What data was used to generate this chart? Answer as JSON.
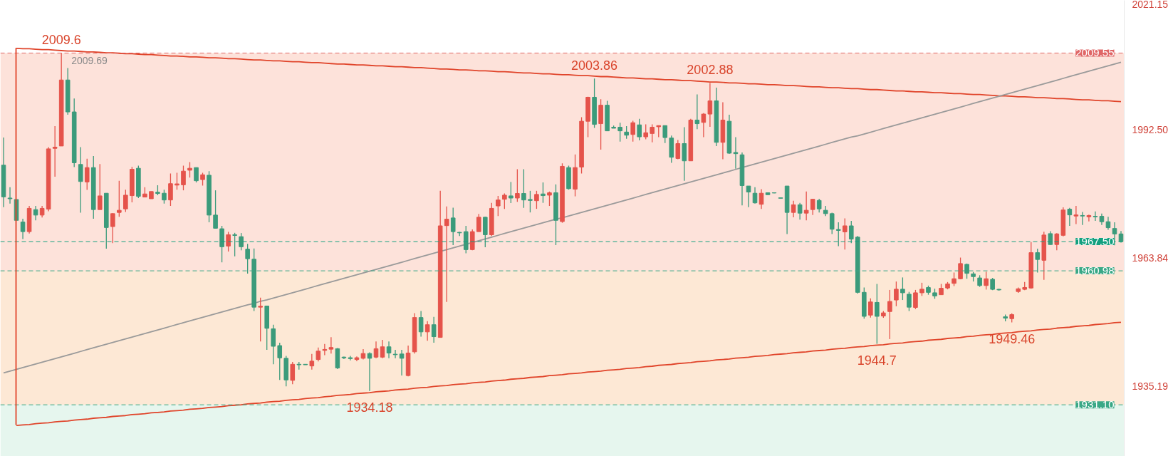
{
  "chart_data": {
    "type": "candlestick",
    "categories": [
      null,
      null,
      null,
      null,
      null,
      null,
      null,
      null,
      null,
      null,
      null,
      null,
      null,
      null,
      null,
      null,
      null,
      null,
      null,
      null,
      null,
      null,
      null,
      null,
      null,
      null,
      null,
      null,
      null,
      null,
      null,
      null,
      null,
      null,
      null,
      null,
      null,
      null,
      null,
      null,
      null,
      null,
      null,
      null,
      null,
      null,
      null,
      null,
      null,
      null,
      null,
      null,
      null,
      null,
      null,
      null,
      null,
      null,
      null,
      null,
      null,
      null,
      null,
      null,
      null,
      null,
      null,
      null,
      null,
      null,
      null,
      null,
      null,
      null,
      null,
      null,
      null,
      null,
      null,
      null,
      null,
      null,
      null,
      null,
      null,
      null,
      null,
      null,
      null,
      null,
      null,
      null,
      null,
      null,
      null,
      null,
      null,
      null,
      null,
      null,
      null,
      null,
      null,
      null,
      null,
      null,
      null,
      null,
      null,
      null,
      null,
      null,
      null,
      null,
      null,
      null,
      null,
      null,
      null,
      null,
      null,
      null,
      null,
      null,
      null,
      null,
      null,
      null,
      null,
      null,
      null,
      null,
      null,
      null,
      null,
      null,
      null,
      null,
      null,
      null,
      null,
      null,
      null,
      null,
      null,
      null,
      null,
      null,
      null,
      null,
      null,
      null,
      null,
      null,
      null,
      null,
      null,
      null,
      null,
      null,
      null,
      null,
      null,
      null,
      null,
      null,
      null,
      null,
      null,
      null,
      null,
      null,
      null,
      null,
      null
    ],
    "ohlc": [
      [
        1984.54,
        1990.7,
        1975.18,
        1977.48
      ],
      [
        1977.21,
        1979.62,
        1975.98,
        1977.05
      ],
      [
        1976.89,
        1976.89,
        1972.24,
        1972.24
      ],
      [
        1971.86,
        1972.61,
        1968.06,
        1969.72
      ],
      [
        1969.72,
        1975.45,
        1969.29,
        1974.91
      ],
      [
        1974.64,
        1975.45,
        1972.24,
        1973.41
      ],
      [
        1973.41,
        1975.45,
        1972.88,
        1974.91
      ],
      [
        1974.75,
        1988.56,
        1974.27,
        1988.18
      ],
      [
        1988.29,
        1993.27,
        1981.97,
        1988.56
      ],
      [
        1988.82,
        2009.6,
        1988.82,
        2003.54
      ],
      [
        2003.54,
        2006.22,
        1995.78,
        1996.42
      ],
      [
        1996.42,
        1999.42,
        1984.12,
        1985.08
      ],
      [
        1984.7,
        1988.56,
        1973.95,
        1980.9
      ],
      [
        1980.8,
        1985.99,
        1979.03,
        1984.01
      ],
      [
        1984.01,
        1986.58,
        1972.61,
        1974.64
      ],
      [
        1974.64,
        1984.81,
        1974.64,
        1977.69
      ],
      [
        1978.28,
        1978.28,
        1965.92,
        1970.63
      ],
      [
        1970.85,
        1973.84,
        1967.15,
        1973.73
      ],
      [
        1974.0,
        1981.07,
        1973.04,
        1974.48
      ],
      [
        1974.8,
        1979.09,
        1974.11,
        1977.85
      ],
      [
        1977.75,
        1984.17,
        1976.25,
        1983.63
      ],
      [
        1983.85,
        1984.44,
        1977.21,
        1977.59
      ],
      [
        1977.43,
        1979.62,
        1977.43,
        1978.12
      ],
      [
        1977.05,
        1978.66,
        1977.05,
        1978.66
      ],
      [
        1978.5,
        1980.05,
        1977.85,
        1978.23
      ],
      [
        1978.28,
        1979.09,
        1975.98,
        1976.78
      ],
      [
        1976.78,
        1982.67,
        1975.45,
        1980.42
      ],
      [
        1980.1,
        1982.83,
        1979.09,
        1980.37
      ],
      [
        1980.16,
        1984.44,
        1978.93,
        1983.21
      ],
      [
        1983.42,
        1985.24,
        1981.76,
        1983.85
      ],
      [
        1984.01,
        1984.01,
        1980.69,
        1981.07
      ],
      [
        1981.33,
        1982.83,
        1979.99,
        1982.4
      ],
      [
        1982.3,
        1983.21,
        1971.81,
        1973.41
      ],
      [
        1973.41,
        1978.93,
        1970.47,
        1970.47
      ],
      [
        1970.36,
        1971.01,
        1962.87,
        1966.35
      ],
      [
        1966.51,
        1969.67,
        1965.28,
        1969.03
      ],
      [
        1969.03,
        1969.45,
        1964.21,
        1968.87
      ],
      [
        1968.6,
        1969.4,
        1965.55,
        1966.35
      ],
      [
        1965.81,
        1966.99,
        1960.36,
        1963.67
      ],
      [
        1963.57,
        1965.97,
        1952.01,
        1952.87
      ],
      [
        1952.87,
        1955.01,
        1945.21,
        1953.08
      ],
      [
        1953.13,
        1953.13,
        1943.34,
        1948.16
      ],
      [
        1948.05,
        1948.96,
        1940.13,
        1944.15
      ],
      [
        1944.3,
        1944.95,
        1936.65,
        1941.57
      ],
      [
        1941.47,
        1942.0,
        1935.21,
        1936.65
      ],
      [
        1936.55,
        1940.67,
        1935.69,
        1940.13
      ],
      [
        1940.13,
        1940.67,
        1938.95,
        1940.02
      ],
      [
        1940.13,
        1940.13,
        1940.02,
        1940.02
      ],
      [
        1939.76,
        1942.43,
        1938.95,
        1940.83
      ],
      [
        1941.2,
        1943.88,
        1940.77,
        1943.07
      ],
      [
        1943.23,
        1944.68,
        1942.17,
        1943.45
      ],
      [
        1943.5,
        1946.18,
        1942.54,
        1943.88
      ],
      [
        1943.61,
        1943.77,
        1939.06,
        1939.33
      ],
      [
        1941.73,
        1941.84,
        1941.31,
        1941.57
      ],
      [
        1941.6,
        1942.0,
        1941.0,
        1941.4
      ],
      [
        1941.2,
        1941.9,
        1940.8,
        1941.6
      ],
      [
        1941.47,
        1943.5,
        1941.2,
        1942.54
      ],
      [
        1942.54,
        1942.81,
        1934.18,
        1941.47
      ],
      [
        1941.73,
        1945.21,
        1941.47,
        1943.61
      ],
      [
        1941.73,
        1945.59,
        1941.47,
        1944.03
      ],
      [
        1944.03,
        1945.21,
        1941.47,
        1942.65
      ],
      [
        1942.38,
        1943.34,
        1941.47,
        1942.27
      ],
      [
        1942.43,
        1943.34,
        1937.62,
        1941.47
      ],
      [
        1937.62,
        1944.3,
        1937.45,
        1942.65
      ],
      [
        1942.91,
        1951.53,
        1942.54,
        1950.56
      ],
      [
        1950.56,
        1952.01,
        1946.29,
        1947.36
      ],
      [
        1947.36,
        1949.76,
        1945.37,
        1948.96
      ],
      [
        1948.96,
        1950.72,
        1944.95,
        1946.29
      ],
      [
        1946.12,
        1978.82,
        1946.12,
        1971.01
      ],
      [
        1971.06,
        1975.34,
        1954.04,
        1972.5
      ],
      [
        1972.77,
        1975.07,
        1966.72,
        1969.72
      ],
      [
        1969.56,
        1969.67,
        1968.76,
        1969.45
      ],
      [
        1969.72,
        1971.01,
        1964.9,
        1965.71
      ],
      [
        1965.71,
        1970.2,
        1965.55,
        1969.72
      ],
      [
        1969.72,
        1973.68,
        1969.72,
        1972.93
      ],
      [
        1972.93,
        1973.04,
        1966.24,
        1969.03
      ],
      [
        1969.03,
        1976.14,
        1968.76,
        1974.91
      ],
      [
        1975.45,
        1977.69,
        1973.2,
        1976.78
      ],
      [
        1976.94,
        1978.23,
        1974.8,
        1977.85
      ],
      [
        1977.69,
        1980.8,
        1976.09,
        1977.21
      ],
      [
        1977.21,
        1983.63,
        1976.36,
        1978.23
      ],
      [
        1978.23,
        1983.63,
        1975.02,
        1976.78
      ],
      [
        1976.89,
        1978.82,
        1974.0,
        1976.68
      ],
      [
        1976.62,
        1978.82,
        1974.8,
        1978.02
      ],
      [
        1978.12,
        1980.69,
        1976.14,
        1977.75
      ],
      [
        1977.85,
        1978.66,
        1975.45,
        1978.39
      ],
      [
        1978.39,
        1980.26,
        1966.72,
        1972.24
      ],
      [
        1971.97,
        1984.97,
        1971.7,
        1984.28
      ],
      [
        1984.01,
        1984.44,
        1979.09,
        1979.3
      ],
      [
        1979.19,
        1986.95,
        1977.59,
        1984.01
      ],
      [
        1984.12,
        1995.25,
        1982.67,
        1994.34
      ],
      [
        1994.34,
        1999.79,
        1990.8,
        1999.69
      ],
      [
        1999.69,
        2003.86,
        1992.84,
        1993.64
      ],
      [
        1993.8,
        1999.26,
        1988.02,
        1997.92
      ],
      [
        1997.92,
        1998.88,
        1992.2,
        1992.2
      ],
      [
        1993.0,
        1993.37,
        1992.78,
        1992.78
      ],
      [
        1993.0,
        1994.01,
        1989.79,
        1992.2
      ],
      [
        1991.93,
        1993.27,
        1990.43,
        1991.23
      ],
      [
        1991.39,
        1994.44,
        1989.79,
        1994.01
      ],
      [
        1993.53,
        1994.87,
        1990.06,
        1990.86
      ],
      [
        1990.86,
        1993.64,
        1990.32,
        1991.77
      ],
      [
        1991.61,
        1993.64,
        1989.63,
        1993.0
      ],
      [
        1993.11,
        1993.37,
        1990.8,
        1993.37
      ],
      [
        1993.37,
        1993.37,
        1989.47,
        1990.7
      ],
      [
        1990.59,
        1991.13,
        1985.08,
        1986.31
      ],
      [
        1986.04,
        1990.16,
        1985.88,
        1989.36
      ],
      [
        1989.36,
        1993.0,
        1981.07,
        1985.51
      ],
      [
        1985.51,
        1994.87,
        1985.51,
        1994.6
      ],
      [
        1994.6,
        2000.33,
        1992.57,
        1993.8
      ],
      [
        1994.07,
        1996.16,
        1990.8,
        1995.94
      ],
      [
        1995.94,
        2002.88,
        1993.11,
        1998.88
      ],
      [
        1998.88,
        2001.83,
        1988.82,
        1989.63
      ],
      [
        1989.63,
        1998.56,
        1985.88,
        1994.6
      ],
      [
        1994.34,
        1995.78,
        1987.06,
        1987.22
      ],
      [
        1987.38,
        1990.8,
        1983.74,
        1987.11
      ],
      [
        1986.85,
        1987.38,
        1975.56,
        1979.99
      ],
      [
        1979.89,
        1979.89,
        1975.18,
        1978.55
      ],
      [
        1978.28,
        1979.62,
        1975.98,
        1976.14
      ],
      [
        1975.82,
        1979.19,
        1974.8,
        1978.28
      ],
      [
        1978.39,
        1978.39,
        1977.96,
        1977.96
      ],
      [
        1978.39,
        1978.39,
        1978.28,
        1978.34
      ],
      [
        1977.26,
        1977.26,
        1977.16,
        1977.16
      ],
      [
        1979.89,
        1979.89,
        1969.19,
        1974.0
      ],
      [
        1974.0,
        1976.62,
        1972.93,
        1975.71
      ],
      [
        1975.71,
        1976.14,
        1972.4,
        1973.84
      ],
      [
        1973.84,
        1978.66,
        1972.24,
        1974.48
      ],
      [
        1974.64,
        1977.05,
        1973.41,
        1976.94
      ],
      [
        1976.68,
        1977.05,
        1974.0,
        1974.8
      ],
      [
        1974.48,
        1975.45,
        1973.2,
        1973.73
      ],
      [
        1973.73,
        1973.95,
        1969.19,
        1970.26
      ],
      [
        1970.2,
        1971.81,
        1966.46,
        1969.99
      ],
      [
        1969.67,
        1972.66,
        1965.71,
        1971.01
      ],
      [
        1971.01,
        1972.13,
        1967.15,
        1968.06
      ],
      [
        1968.49,
        1968.76,
        1955.92,
        1956.18
      ],
      [
        1956.18,
        1957.25,
        1950.29,
        1950.83
      ],
      [
        1951.1,
        1954.85,
        1950.56,
        1954.04
      ],
      [
        1953.93,
        1958.06,
        1944.7,
        1950.83
      ],
      [
        1950.9,
        1952.0,
        1950.5,
        1951.6
      ],
      [
        1951.9,
        1956.72,
        1945.75,
        1954.15
      ],
      [
        1954.47,
        1958.59,
        1953.08,
        1956.88
      ],
      [
        1956.88,
        1959.5,
        1954.47,
        1956.08
      ],
      [
        1955.76,
        1956.29,
        1952.01,
        1952.87
      ],
      [
        1952.81,
        1956.72,
        1952.44,
        1956.08
      ],
      [
        1956.08,
        1958.32,
        1955.38,
        1956.88
      ],
      [
        1957.25,
        1957.68,
        1955.65,
        1956.18
      ],
      [
        1956.08,
        1956.99,
        1954.74,
        1955.38
      ],
      [
        1955.65,
        1958.06,
        1955.65,
        1957.09
      ],
      [
        1957.15,
        1958.48,
        1956.85,
        1958.06
      ],
      [
        1958.18,
        1960.6,
        1957.57,
        1959.21
      ],
      [
        1959.21,
        1963.93,
        1959.09,
        1962.6
      ],
      [
        1962.42,
        1962.6,
        1959.21,
        1960.42
      ],
      [
        1960.3,
        1960.72,
        1958.6,
        1959.69
      ],
      [
        1959.39,
        1959.99,
        1957.4,
        1957.7
      ],
      [
        1957.7,
        1960.78,
        1956.79,
        1959.21
      ],
      [
        1959.09,
        1959.39,
        1956.67,
        1956.85
      ],
      [
        1956.85,
        1956.97,
        1956.55,
        1956.73
      ],
      [
        1950.73,
        1951.21,
        1949.7,
        1950.43
      ],
      [
        1950.31,
        1951.52,
        1949.46,
        1951.21
      ],
      [
        1956.36,
        1957.27,
        1956.06,
        1956.97
      ],
      [
        1956.85,
        1958.48,
        1956.67,
        1957.27
      ],
      [
        1957.15,
        1967.39,
        1956.97,
        1965.03
      ],
      [
        1965.03,
        1965.93,
        1960.6,
        1963.51
      ],
      [
        1963.33,
        1969.69,
        1958.97,
        1968.96
      ],
      [
        1969.27,
        1969.81,
        1966.78,
        1966.84
      ],
      [
        1966.84,
        1969.39,
        1965.57,
        1969.21
      ],
      [
        1968.9,
        1975.14,
        1968.66,
        1974.54
      ],
      [
        1974.72,
        1975.02,
        1971.02,
        1973.45
      ],
      [
        1973.2,
        1975.45,
        1971.39,
        1973.45
      ],
      [
        1973.32,
        1974.11,
        1971.2,
        1973.2
      ],
      [
        1973.02,
        1973.51,
        1971.99,
        1973.32
      ],
      [
        1973.14,
        1974.23,
        1972.11,
        1973.02
      ],
      [
        1973.14,
        1973.75,
        1971.2,
        1971.93
      ],
      [
        1971.93,
        1973.02,
        1970.12,
        1970.6
      ],
      [
        1970.42,
        1971.81,
        1966.66,
        1969.21
      ],
      [
        1969.21,
        1969.87,
        1967.27,
        1967.5
      ]
    ],
    "colors": [
      "#3b9b7b",
      "#3b9b7b",
      "#3b9b7b",
      "#3b9b7b",
      "#e5534b",
      "#3b9b7b",
      "#e5534b",
      "#e5534b",
      "#e5534b",
      "#e5534b",
      "#3b9b7b",
      "#3b9b7b",
      "#3b9b7b",
      "#e5534b",
      "#3b9b7b",
      "#e5534b",
      "#3b9b7b",
      "#e5534b",
      "#e5534b",
      "#e5534b",
      "#e5534b",
      "#3b9b7b",
      "#e5534b",
      "#e5534b",
      "#3b9b7b",
      "#3b9b7b",
      "#e5534b",
      "#e5534b",
      "#e5534b",
      "#e5534b",
      "#3b9b7b",
      "#e5534b",
      "#3b9b7b",
      "#3b9b7b",
      "#3b9b7b",
      "#e5534b",
      "#3b9b7b",
      "#3b9b7b",
      "#3b9b7b",
      "#3b9b7b",
      "#e5534b",
      "#3b9b7b",
      "#3b9b7b",
      "#3b9b7b",
      "#3b9b7b",
      "#e5534b",
      "#3b9b7b",
      "#3b9b7b",
      "#e5534b",
      "#e5534b",
      "#e5534b",
      "#e5534b",
      "#3b9b7b",
      "#3b9b7b",
      "#3b9b7b",
      "#e5534b",
      "#e5534b",
      "#3b9b7b",
      "#e5534b",
      "#e5534b",
      "#3b9b7b",
      "#3b9b7b",
      "#3b9b7b",
      "#e5534b",
      "#e5534b",
      "#3b9b7b",
      "#e5534b",
      "#3b9b7b",
      "#e5534b",
      "#e5534b",
      "#3b9b7b",
      "#3b9b7b",
      "#3b9b7b",
      "#e5534b",
      "#e5534b",
      "#3b9b7b",
      "#e5534b",
      "#e5534b",
      "#e5534b",
      "#3b9b7b",
      "#e5534b",
      "#3b9b7b",
      "#3b9b7b",
      "#e5534b",
      "#3b9b7b",
      "#e5534b",
      "#3b9b7b",
      "#e5534b",
      "#3b9b7b",
      "#e5534b",
      "#e5534b",
      "#e5534b",
      "#3b9b7b",
      "#e5534b",
      "#3b9b7b",
      "#3b9b7b",
      "#3b9b7b",
      "#3b9b7b",
      "#e5534b",
      "#3b9b7b",
      "#e5534b",
      "#e5534b",
      "#e5534b",
      "#3b9b7b",
      "#3b9b7b",
      "#e5534b",
      "#3b9b7b",
      "#e5534b",
      "#3b9b7b",
      "#e5534b",
      "#e5534b",
      "#3b9b7b",
      "#e5534b",
      "#3b9b7b",
      "#3b9b7b",
      "#3b9b7b",
      "#3b9b7b",
      "#3b9b7b",
      "#e5534b",
      "#3b9b7b",
      "#3b9b7b",
      "#3b9b7b",
      "#3b9b7b",
      "#e5534b",
      "#3b9b7b",
      "#e5534b",
      "#e5534b",
      "#3b9b7b",
      "#3b9b7b",
      "#3b9b7b",
      "#3b9b7b",
      "#e5534b",
      "#3b9b7b",
      "#3b9b7b",
      "#3b9b7b",
      "#e5534b",
      "#3b9b7b",
      "#e5534b",
      "#e5534b",
      "#e5534b",
      "#3b9b7b",
      "#3b9b7b",
      "#e5534b",
      "#e5534b",
      "#3b9b7b",
      "#3b9b7b",
      "#e5534b",
      "#e5534b",
      "#e5534b",
      "#e5534b",
      "#3b9b7b",
      "#3b9b7b",
      "#3b9b7b",
      "#e5534b",
      "#3b9b7b",
      "#3b9b7b",
      "#3b9b7b",
      "#e5534b",
      "#e5534b",
      "#e5534b",
      "#e5534b",
      "#3b9b7b",
      "#e5534b",
      "#3b9b7b",
      "#e5534b",
      "#e5534b",
      "#3b9b7b",
      "#e5534b",
      "#3b9b7b",
      "#e5534b",
      "#3b9b7b",
      "#3b9b7b",
      "#3b9b7b",
      "#3b9b7b",
      "#3b9b7b"
    ],
    "series": [
      {
        "type": "line",
        "color": "#e0442a",
        "values": [
          null,
          null,
          2010.6,
          2010.5,
          2010.5,
          2010.4,
          2010.3,
          2010.3,
          2010.2,
          2010.1,
          2010.0,
          2010.0,
          2009.9,
          2009.8,
          2009.8,
          2009.7,
          2009.6,
          2009.6,
          2009.5,
          2009.4,
          2009.4,
          2009.3,
          2009.2,
          2009.2,
          2009.1,
          2009.0,
          2008.9,
          2008.9,
          2008.8,
          2008.7,
          2008.7,
          2008.6,
          2008.5,
          2008.5,
          2008.4,
          2008.3,
          2008.3,
          2008.2,
          2008.1,
          2008.0,
          2008.0,
          2007.9,
          2007.8,
          2007.8,
          2007.7,
          2007.6,
          2007.6,
          2007.5,
          2007.4,
          2007.4,
          2007.3,
          2007.2,
          2007.1,
          2007.1,
          2007.0,
          2006.9,
          2006.9,
          2006.8,
          2006.7,
          2006.7,
          2006.6,
          2006.5,
          2006.5,
          2006.4,
          2006.3,
          2006.3,
          2006.2,
          2006.1,
          2006.0,
          2006.0,
          2005.9,
          2005.8,
          2005.8,
          2005.7,
          2005.6,
          2005.6,
          2005.5,
          2005.4,
          2005.4,
          2005.3,
          2005.2,
          2005.1,
          2005.1,
          2005.0,
          2004.9,
          2004.9,
          2004.8,
          2004.7,
          2004.7,
          2004.6,
          2004.5,
          2004.5,
          2004.4,
          2004.3,
          2004.3,
          2004.2,
          2004.1,
          2004.0,
          2004.0,
          2003.9,
          2003.8,
          2003.8,
          2003.7,
          2003.6,
          2003.6,
          2003.5,
          2003.4,
          2003.4,
          2003.3,
          2003.2,
          2003.1,
          2003.1,
          2003.0,
          2002.9,
          2002.9,
          2002.8,
          2002.7,
          2002.7,
          2002.6,
          2002.5,
          2002.5,
          2002.4,
          2002.3,
          2002.3,
          2002.2,
          2002.1,
          2002.0,
          2002.0,
          2001.9,
          2001.8,
          2001.8,
          2001.7,
          2001.6,
          2001.6,
          2001.5,
          2001.4,
          2001.4,
          2001.3,
          2001.2,
          2001.1,
          2001.1,
          2001.0,
          2000.9,
          2000.9,
          2000.8,
          2000.7,
          2000.7,
          2000.6,
          2000.5,
          2000.5,
          2000.4,
          2000.3,
          2000.3,
          2000.2,
          2000.1,
          2000.0,
          2000.0,
          1999.9,
          1999.8,
          1999.8,
          1999.7,
          1999.6,
          1999.6,
          1999.5,
          1999.4,
          1999.4,
          1999.3,
          1999.2,
          1999.1,
          1999.1,
          1999.0,
          1998.9,
          1998.9,
          1998.8,
          1998.7
        ]
      },
      {
        "type": "line",
        "color": "#e0442a",
        "values": [
          null,
          null,
          1926.5,
          1926.6,
          1926.7,
          1926.9,
          1927.0,
          1927.1,
          1927.3,
          1927.4,
          1927.5,
          1927.7,
          1927.8,
          1927.9,
          1928.1,
          1928.2,
          1928.3,
          1928.5,
          1928.6,
          1928.7,
          1928.9,
          1929.0,
          1929.1,
          1929.3,
          1929.4,
          1929.5,
          1929.7,
          1929.8,
          1929.9,
          1930.1,
          1930.2,
          1930.3,
          1930.5,
          1930.6,
          1930.7,
          1930.9,
          1931.0,
          1931.1,
          1931.3,
          1931.4,
          1931.5,
          1931.7,
          1931.8,
          1931.9,
          1932.1,
          1932.2,
          1932.3,
          1932.5,
          1932.6,
          1932.7,
          1932.9,
          1933.0,
          1933.2,
          1933.3,
          1933.4,
          1933.6,
          1933.7,
          1933.8,
          1934.0,
          1934.1,
          1934.2,
          1934.4,
          1934.5,
          1934.6,
          1934.8,
          1934.9,
          1935.0,
          1935.2,
          1935.3,
          1935.4,
          1935.6,
          1935.7,
          1935.8,
          1936.0,
          1936.1,
          1936.2,
          1936.4,
          1936.5,
          1936.6,
          1936.8,
          1936.9,
          1937.0,
          1937.2,
          1937.3,
          1937.4,
          1937.6,
          1937.7,
          1937.8,
          1938.0,
          1938.1,
          1938.2,
          1938.4,
          1938.5,
          1938.6,
          1938.8,
          1938.9,
          1939.0,
          1939.2,
          1939.3,
          1939.4,
          1939.6,
          1939.7,
          1939.9,
          1940.0,
          1940.1,
          1940.3,
          1940.4,
          1940.5,
          1940.7,
          1940.8,
          1940.9,
          1941.1,
          1941.2,
          1941.3,
          1941.5,
          1941.6,
          1941.7,
          1941.9,
          1942.0,
          1942.1,
          1942.3,
          1942.4,
          1942.5,
          1942.7,
          1942.8,
          1942.9,
          1943.1,
          1943.2,
          1943.3,
          1943.5,
          1943.6,
          1943.7,
          1943.9,
          1944.0,
          1944.1,
          1944.3,
          1944.4,
          1944.5,
          1944.7,
          1944.8,
          1944.9,
          1945.1,
          1945.2,
          1945.3,
          1945.5,
          1945.6,
          1945.7,
          1945.9,
          1946.0,
          1946.1,
          1946.3,
          1946.4,
          1946.6,
          1946.7,
          1946.8,
          1947.0,
          1947.1,
          1947.2,
          1947.4,
          1947.5,
          1947.6,
          1947.8,
          1947.9,
          1948.0,
          1948.2,
          1948.3,
          1948.4,
          1948.6,
          1948.7,
          1948.8,
          1949.0,
          1949.1,
          1949.2,
          1949.4,
          1949.5
        ]
      },
      {
        "type": "line",
        "color": "#9a9a9a",
        "values": [
          1938.2,
          1938.6,
          1939.0,
          1939.4,
          1939.8,
          1940.2,
          1940.6,
          1941.0,
          1941.4,
          1941.8,
          1942.2,
          1942.6,
          1943.0,
          1943.4,
          1943.8,
          1944.2,
          1944.6,
          1945.0,
          1945.4,
          1945.8,
          1946.2,
          1946.6,
          1947.0,
          1947.4,
          1947.8,
          1948.2,
          1948.6,
          1949.0,
          1949.4,
          1949.8,
          1950.2,
          1950.6,
          1951.0,
          1951.4,
          1951.8,
          1952.2,
          1952.6,
          1953.0,
          1953.4,
          1953.7,
          1954.2,
          1954.5,
          1954.9,
          1955.3,
          1955.7,
          1956.1,
          1956.5,
          1956.9,
          1957.3,
          1957.7,
          1958.1,
          1958.5,
          1958.9,
          1959.3,
          1959.7,
          1960.1,
          1960.5,
          1960.9,
          1961.3,
          1961.7,
          1962.1,
          1962.5,
          1962.9,
          1963.3,
          1963.7,
          1964.1,
          1964.5,
          1964.9,
          1965.3,
          1965.7,
          1966.1,
          1966.5,
          1966.9,
          1967.3,
          1967.7,
          1968.1,
          1968.5,
          1968.9,
          1969.3,
          1969.7,
          1970.1,
          1970.5,
          1970.9,
          1971.3,
          1971.7,
          1972.1,
          1972.5,
          1972.8,
          1973.2,
          1973.6,
          1974.0,
          1974.4,
          1974.8,
          1975.2,
          1975.6,
          1976.0,
          1976.4,
          1976.8,
          1977.2,
          1977.6,
          1978.0,
          1978.4,
          1978.8,
          1979.2,
          1979.6,
          1980.0,
          1980.4,
          1980.8,
          1981.2,
          1981.6,
          1982.0,
          1982.4,
          1982.8,
          1983.2,
          1983.6,
          1984.0,
          1984.4,
          1984.8,
          1985.2,
          1985.6,
          1986.0,
          1986.4,
          1986.8,
          1987.2,
          1987.6,
          1988.0,
          1988.4,
          1988.8,
          1989.2,
          1989.6,
          1990.0,
          1990.4,
          1990.8,
          1991.1,
          1991.5,
          1991.9,
          1992.3,
          1992.7,
          1993.1,
          1993.5,
          1993.9,
          1994.3,
          1994.7,
          1995.1,
          1995.5,
          1995.9,
          1996.3,
          1996.7,
          1997.1,
          1997.5,
          1997.9,
          1998.3,
          1998.7,
          1999.1,
          1999.5,
          1999.9,
          2000.3,
          2000.7,
          2001.1,
          2001.5,
          2001.9,
          2002.3,
          2002.7,
          2003.1,
          2003.5,
          2003.9,
          2004.3,
          2004.7,
          2005.1,
          2005.5,
          2005.9,
          2006.3,
          2006.7,
          2007.1,
          2007.5
        ]
      }
    ],
    "ylim": [
      1919.6,
      2021.3
    ],
    "yticks": [
      2021.15,
      {
        "value": 1992.5,
        "label": "1992.50"
      },
      1963.84,
      1935.19
    ],
    "tick_labels": "y",
    "bands": [
      {
        "axis": "y",
        "from": 1960.98,
        "to": 2009.55,
        "color": "#fde2da"
      },
      {
        "axis": "y",
        "from": 1931.1,
        "to": 1960.98,
        "color": "#fde8d5"
      },
      {
        "axis": "y",
        "from": 1919.6,
        "to": 1931.1,
        "color": "#e6f6ee"
      }
    ],
    "ref_lines": [
      {
        "axis": "y",
        "value": 2009.55,
        "label": "2009.55",
        "color": "#e06666",
        "line_style": "dashed"
      },
      {
        "axis": "y",
        "value": 1967.5,
        "label": "1967.50",
        "color": "#14a07f",
        "line_style": "dashed"
      },
      {
        "axis": "y",
        "value": 1960.98,
        "label": "1960.98",
        "color": "#3aa886",
        "line_style": "dashed"
      },
      {
        "axis": "y",
        "value": 1931.1,
        "label": "1931.10",
        "color": "#3aa886",
        "line_style": "dashed"
      }
    ],
    "annotations": [
      {
        "text": "2009.6",
        "y": 2009.6
      },
      "2009.69",
      {
        "text": "2003.86",
        "y": 2003.86
      },
      {
        "text": "2002.88",
        "y": 2002.88
      },
      {
        "text": "1934.18",
        "y": 1934.18
      },
      {
        "text": "1944.7",
        "y": 1944.7
      },
      {
        "text": "1949.46",
        "y": 1949.46
      }
    ]
  }
}
